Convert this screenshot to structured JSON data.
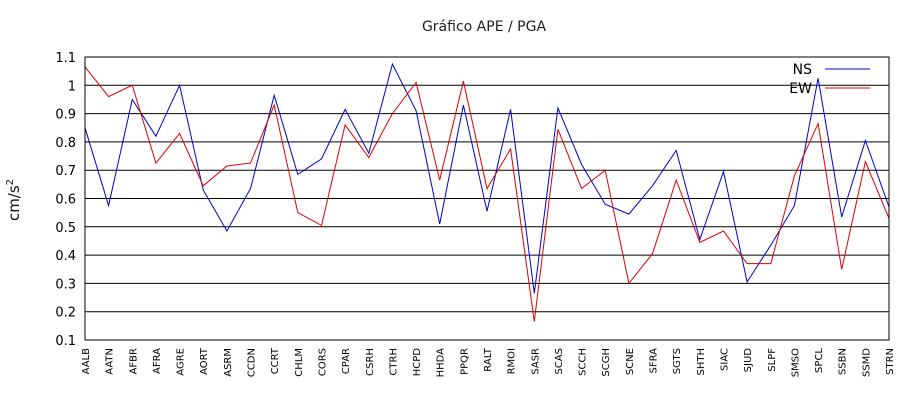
{
  "chart_data": {
    "type": "line",
    "title": "Gráfico  APE / PGA",
    "xlabel": "",
    "ylabel_base": "cm/s",
    "ylabel_sup": "2",
    "ylim": [
      0.1,
      1.1
    ],
    "yticks": [
      0.1,
      0.2,
      0.3,
      0.4,
      0.5,
      0.6,
      0.7,
      0.8,
      0.9,
      1,
      1.1
    ],
    "ytick_labels": [
      "0.1",
      "0.2",
      "0.3",
      "0.4",
      "0.5",
      "0.6",
      "0.7",
      "0.8",
      "0.9",
      "1",
      "1.1"
    ],
    "grid": true,
    "legend_position": "top-right",
    "categories": [
      "AALB",
      "AATN",
      "AFBR",
      "AFRA",
      "AGRE",
      "AORT",
      "ASRM",
      "CCDN",
      "CCRT",
      "CHLM",
      "CORS",
      "CPAR",
      "CSRH",
      "CTRH",
      "HCPD",
      "HHDA",
      "PPQR",
      "RALT",
      "RMOI",
      "SASR",
      "SCAS",
      "SCCH",
      "SCGH",
      "SCNE",
      "SFRA",
      "SGTS",
      "SHTH",
      "SIAC",
      "SJUD",
      "SLPF",
      "SMSO",
      "SPCL",
      "SSBN",
      "SSMD",
      "STRN"
    ],
    "series": [
      {
        "name": "NS",
        "color": "#0000cc",
        "values": [
          0.85,
          0.575,
          0.95,
          0.82,
          1.0,
          0.63,
          0.485,
          0.635,
          0.965,
          0.685,
          0.74,
          0.915,
          0.76,
          1.075,
          0.91,
          0.51,
          0.93,
          0.555,
          0.915,
          0.265,
          0.92,
          0.72,
          0.58,
          0.545,
          0.645,
          0.77,
          0.455,
          0.695,
          0.305,
          0.435,
          0.575,
          1.025,
          0.535,
          0.805,
          0.57
        ]
      },
      {
        "name": "EW",
        "color": "#dd0000",
        "values": [
          1.065,
          0.96,
          1.0,
          0.725,
          0.83,
          0.645,
          0.715,
          0.725,
          0.93,
          0.55,
          0.505,
          0.86,
          0.745,
          0.9,
          1.01,
          0.665,
          1.015,
          0.635,
          0.775,
          0.165,
          0.845,
          0.635,
          0.7,
          0.3,
          0.405,
          0.665,
          0.445,
          0.485,
          0.37,
          0.37,
          0.68,
          0.865,
          0.35,
          0.73,
          0.53
        ]
      }
    ]
  }
}
